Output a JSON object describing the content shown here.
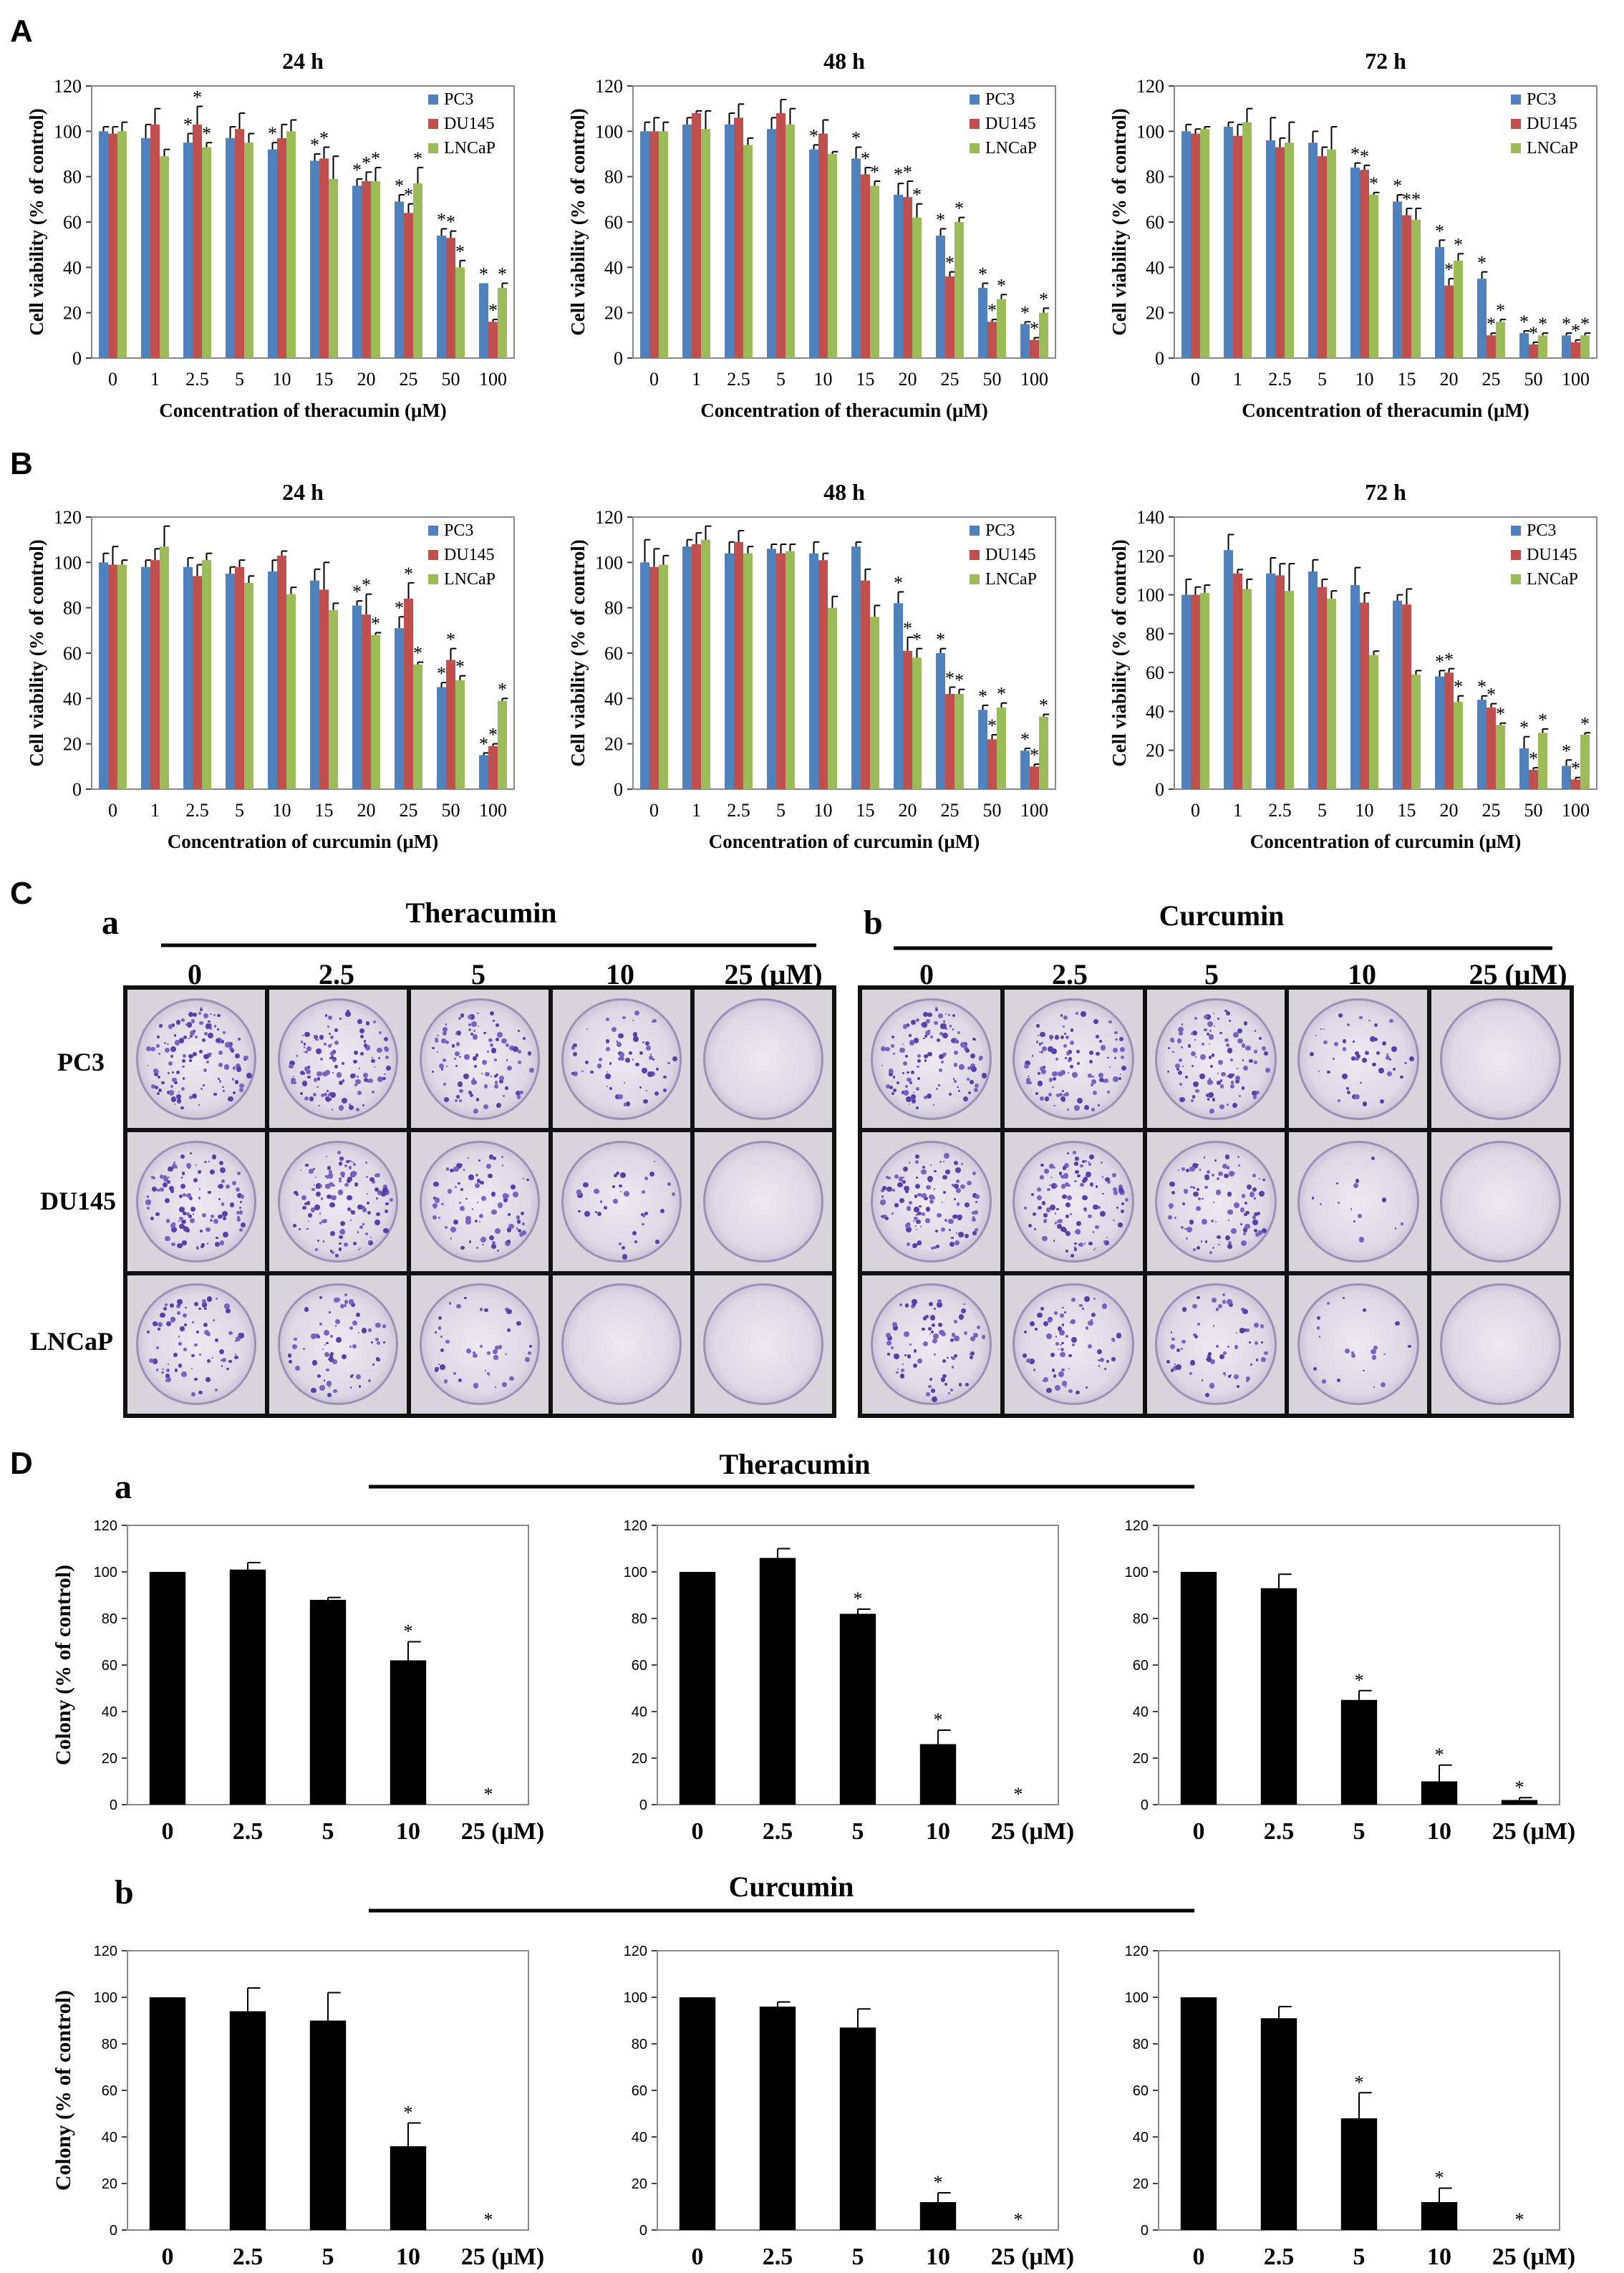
{
  "colors": {
    "pc3": "#4f81bd",
    "du145": "#c0504d",
    "lncap": "#9bbb59",
    "black": "#000000"
  },
  "panel_letters": {
    "A": "A",
    "B": "B",
    "C": "C",
    "D": "D"
  },
  "section_C": {
    "a_label": "a",
    "a_title": "Theracumin",
    "b_label": "b",
    "b_title": "Curcumin",
    "doses": [
      "0",
      "2.5",
      "5",
      "10",
      "25 (μM)"
    ],
    "rows": [
      "PC3",
      "DU145",
      "LNCaP"
    ],
    "colony_density": {
      "theracumin": [
        [
          0.9,
          0.85,
          0.7,
          0.45,
          0.0
        ],
        [
          0.85,
          0.85,
          0.6,
          0.25,
          0.0
        ],
        [
          0.55,
          0.5,
          0.3,
          0.0,
          0.0
        ]
      ],
      "curcumin": [
        [
          0.85,
          0.75,
          0.75,
          0.35,
          0.0
        ],
        [
          0.85,
          0.8,
          0.7,
          0.1,
          0.0
        ],
        [
          0.55,
          0.5,
          0.45,
          0.15,
          0.0
        ]
      ]
    }
  },
  "section_D": {
    "a_label": "a",
    "a_title": "Theracumin",
    "b_label": "b",
    "b_title": "Curcumin"
  },
  "chart_data": [
    {
      "id": "A1",
      "type": "bar",
      "title": "24 h",
      "categories": [
        "0",
        "1",
        "2.5",
        "5",
        "10",
        "15",
        "20",
        "25",
        "50",
        "100"
      ],
      "xlabel": "Concentration  of theracumin  (μM)",
      "ylabel": "Cell viability  (% of control)",
      "ylim": [
        0,
        120
      ],
      "yticks": [
        0,
        20,
        40,
        60,
        80,
        100,
        120
      ],
      "legend": "top-right",
      "series": [
        {
          "name": "PC3",
          "values": [
            100,
            97,
            95,
            97,
            92,
            87,
            76,
            69,
            54,
            33
          ],
          "err": [
            2,
            6,
            4,
            5,
            3,
            3,
            3,
            3,
            3,
            0
          ]
        },
        {
          "name": "DU145",
          "values": [
            99,
            103,
            103,
            101,
            97,
            88,
            78,
            64,
            53,
            16
          ],
          "err": [
            3,
            7,
            8,
            7,
            6,
            5,
            4,
            4,
            3,
            1
          ],
          "stars": [
            "",
            "",
            "*",
            "",
            "",
            "*",
            "*",
            "*",
            "*",
            "*"
          ]
        },
        {
          "name": "LNCaP",
          "values": [
            100,
            89,
            93,
            95,
            100,
            79,
            78,
            77,
            40,
            31
          ],
          "err": [
            4,
            3,
            2,
            4,
            5,
            10,
            6,
            7,
            3,
            2
          ],
          "stars": [
            "",
            "",
            "*",
            "",
            "",
            "",
            "*",
            "*",
            "*",
            "*"
          ]
        }
      ],
      "pc3_stars": [
        "",
        "",
        "*",
        "",
        "*",
        "*",
        "*",
        "*",
        "*",
        "*"
      ]
    },
    {
      "id": "A2",
      "type": "bar",
      "title": "48 h",
      "categories": [
        "0",
        "1",
        "2.5",
        "5",
        "10",
        "15",
        "20",
        "25",
        "50",
        "100"
      ],
      "xlabel": "Concentration  of theracumin  (μM)",
      "ylabel": "Cell viability  (% of control)",
      "ylim": [
        0,
        120
      ],
      "yticks": [
        0,
        20,
        40,
        60,
        80,
        100,
        120
      ],
      "legend": "top-right",
      "series": [
        {
          "name": "PC3",
          "values": [
            100,
            103,
            103,
            101,
            92,
            88,
            72,
            54,
            31,
            15
          ],
          "err": [
            4,
            3,
            5,
            5,
            2,
            5,
            5,
            3,
            2,
            1
          ]
        },
        {
          "name": "DU145",
          "values": [
            100,
            108,
            106,
            108,
            99,
            81,
            71,
            36,
            16,
            8
          ],
          "err": [
            6,
            1,
            6,
            6,
            6,
            3,
            7,
            2,
            1,
            1
          ]
        },
        {
          "name": "LNCaP",
          "values": [
            100,
            101,
            94,
            103,
            90,
            76,
            62,
            60,
            26,
            20
          ],
          "err": [
            4,
            8,
            3,
            7,
            1,
            2,
            6,
            2,
            2,
            2
          ]
        }
      ],
      "pc3_stars": [
        "",
        "",
        "",
        "",
        "*",
        "*",
        "*",
        "*",
        "*",
        "*"
      ],
      "du145_stars": [
        "",
        "",
        "",
        "",
        "",
        "*",
        "*",
        "*",
        "*",
        "*"
      ],
      "lncap_stars": [
        "",
        "",
        "",
        "",
        "",
        "*",
        "*",
        "*",
        "*",
        "*"
      ]
    },
    {
      "id": "A3",
      "type": "bar",
      "title": "72 h",
      "categories": [
        "0",
        "1",
        "2.5",
        "5",
        "10",
        "15",
        "20",
        "25",
        "50",
        "100"
      ],
      "xlabel": "Concentration  of theracumin  (μM)",
      "ylabel": "Cell viability  (% of control)",
      "ylim": [
        0,
        120
      ],
      "yticks": [
        0,
        20,
        40,
        60,
        80,
        100,
        120
      ],
      "legend": "top-right",
      "series": [
        {
          "name": "PC3",
          "values": [
            100,
            102,
            96,
            95,
            84,
            69,
            49,
            35,
            11,
            10
          ],
          "err": [
            3,
            2,
            10,
            5,
            2,
            3,
            3,
            3,
            1,
            1
          ]
        },
        {
          "name": "DU145",
          "values": [
            99,
            98,
            93,
            89,
            83,
            63,
            32,
            10,
            6,
            7
          ],
          "err": [
            2,
            5,
            4,
            4,
            2,
            3,
            3,
            1,
            1,
            1
          ]
        },
        {
          "name": "LNCaP",
          "values": [
            101,
            104,
            95,
            92,
            72,
            61,
            43,
            16,
            10,
            10
          ],
          "err": [
            1,
            6,
            9,
            10,
            1,
            5,
            3,
            1,
            1,
            1
          ]
        }
      ],
      "stars_all": true
    },
    {
      "id": "B1",
      "type": "bar",
      "title": "24 h",
      "categories": [
        "0",
        "1",
        "2.5",
        "5",
        "10",
        "15",
        "20",
        "25",
        "50",
        "100"
      ],
      "xlabel": "Concentration  of curcumin  (μM)",
      "ylabel": "Cell viability  (% of control)",
      "ylim": [
        0,
        120
      ],
      "yticks": [
        0,
        20,
        40,
        60,
        80,
        100,
        120
      ],
      "legend": "top-right",
      "series": [
        {
          "name": "PC3",
          "values": [
            100,
            98,
            98,
            95,
            96,
            92,
            81,
            71,
            45,
            15
          ],
          "err": [
            4,
            3,
            4,
            3,
            5,
            5,
            2,
            5,
            2,
            1
          ]
        },
        {
          "name": "DU145",
          "values": [
            99,
            101,
            94,
            98,
            103,
            88,
            77,
            84,
            57,
            19
          ],
          "err": [
            8,
            5,
            5,
            3,
            2,
            12,
            9,
            7,
            5,
            1
          ]
        },
        {
          "name": "LNCaP",
          "values": [
            99,
            107,
            101,
            91,
            86,
            79,
            68,
            55,
            48,
            39
          ],
          "err": [
            2,
            9,
            3,
            3,
            3,
            3,
            1,
            1,
            2,
            1
          ]
        }
      ]
    },
    {
      "id": "B2",
      "type": "bar",
      "title": "48 h",
      "categories": [
        "0",
        "1",
        "2.5",
        "5",
        "10",
        "15",
        "20",
        "25",
        "50",
        "100"
      ],
      "xlabel": "Concentration  of curcumin  (μM)",
      "ylabel": "Cell viability  (% of control)",
      "ylim": [
        0,
        120
      ],
      "yticks": [
        0,
        20,
        40,
        60,
        80,
        100,
        120
      ],
      "legend": "top-right",
      "series": [
        {
          "name": "PC3",
          "values": [
            100,
            107,
            104,
            106,
            104,
            107,
            82,
            60,
            35,
            17
          ],
          "err": [
            10,
            3,
            5,
            2,
            5,
            2,
            5,
            2,
            2,
            1
          ]
        },
        {
          "name": "DU145",
          "values": [
            98,
            108,
            109,
            104,
            101,
            92,
            61,
            42,
            22,
            10
          ],
          "err": [
            8,
            5,
            5,
            4,
            3,
            5,
            6,
            3,
            2,
            1
          ]
        },
        {
          "name": "LNCaP",
          "values": [
            99,
            110,
            104,
            105,
            80,
            76,
            58,
            42,
            36,
            32
          ],
          "err": [
            4,
            6,
            3,
            3,
            5,
            5,
            4,
            2,
            2,
            1
          ]
        }
      ]
    },
    {
      "id": "B3",
      "type": "bar",
      "title": "72 h",
      "categories": [
        "0",
        "1",
        "2.5",
        "5",
        "10",
        "15",
        "20",
        "25",
        "50",
        "100"
      ],
      "xlabel": "Concentration  of curcumin  (μM)",
      "ylabel": "Cell viability  (% of control)",
      "ylim": [
        0,
        140
      ],
      "yticks": [
        0,
        20,
        40,
        60,
        80,
        100,
        120,
        140
      ],
      "legend": "top-right",
      "series": [
        {
          "name": "PC3",
          "values": [
            100,
            123,
            111,
            112,
            105,
            97,
            58,
            46,
            21,
            12
          ],
          "err": [
            8,
            8,
            8,
            6,
            9,
            3,
            3,
            2,
            6,
            3
          ]
        },
        {
          "name": "DU145",
          "values": [
            100,
            111,
            110,
            104,
            96,
            95,
            60,
            42,
            10,
            5
          ],
          "err": [
            4,
            2,
            6,
            4,
            5,
            8,
            2,
            2,
            1,
            1
          ]
        },
        {
          "name": "LNCaP",
          "values": [
            101,
            103,
            102,
            98,
            69,
            59,
            45,
            33,
            29,
            28
          ],
          "err": [
            4,
            5,
            14,
            4,
            2,
            2,
            3,
            1,
            2,
            1
          ]
        }
      ]
    },
    {
      "id": "D1",
      "type": "bar",
      "categories": [
        "0",
        "2.5",
        "5",
        "10",
        "25 (μM)"
      ],
      "ylabel": "Colony  (% of control)",
      "ylim": [
        0,
        120
      ],
      "yticks": [
        0,
        20,
        40,
        60,
        80,
        100,
        120
      ],
      "series": [
        {
          "values": [
            100,
            101,
            88,
            62,
            0
          ],
          "err": [
            0,
            3,
            1,
            8,
            0
          ],
          "stars": [
            "",
            "",
            "",
            "*",
            "*"
          ]
        }
      ]
    },
    {
      "id": "D2",
      "type": "bar",
      "categories": [
        "0",
        "2.5",
        "5",
        "10",
        "25 (μM)"
      ],
      "ylim": [
        0,
        120
      ],
      "yticks": [
        0,
        20,
        40,
        60,
        80,
        100,
        120
      ],
      "series": [
        {
          "values": [
            100,
            106,
            82,
            26,
            0
          ],
          "err": [
            0,
            4,
            2,
            6,
            0
          ],
          "stars": [
            "",
            "",
            "*",
            "*",
            "*"
          ]
        }
      ]
    },
    {
      "id": "D3",
      "type": "bar",
      "categories": [
        "0",
        "2.5",
        "5",
        "10",
        "25 (μM)"
      ],
      "ylim": [
        0,
        120
      ],
      "yticks": [
        0,
        20,
        40,
        60,
        80,
        100,
        120
      ],
      "series": [
        {
          "values": [
            100,
            93,
            45,
            10,
            2
          ],
          "err": [
            0,
            6,
            4,
            7,
            1
          ],
          "stars": [
            "",
            "",
            "*",
            "*",
            "*"
          ]
        }
      ]
    },
    {
      "id": "D4",
      "type": "bar",
      "categories": [
        "0",
        "2.5",
        "5",
        "10",
        "25 (μM)"
      ],
      "ylabel": "Colony  (% of control)",
      "ylim": [
        0,
        120
      ],
      "yticks": [
        0,
        20,
        40,
        60,
        80,
        100,
        120
      ],
      "series": [
        {
          "values": [
            100,
            94,
            90,
            36,
            0
          ],
          "err": [
            0,
            10,
            12,
            10,
            0
          ],
          "stars": [
            "",
            "",
            "",
            "*",
            "*"
          ]
        }
      ]
    },
    {
      "id": "D5",
      "type": "bar",
      "categories": [
        "0",
        "2.5",
        "5",
        "10",
        "25 (μM)"
      ],
      "ylim": [
        0,
        120
      ],
      "yticks": [
        0,
        20,
        40,
        60,
        80,
        100,
        120
      ],
      "series": [
        {
          "values": [
            100,
            96,
            87,
            12,
            0
          ],
          "err": [
            0,
            2,
            8,
            4,
            0
          ],
          "stars": [
            "",
            "",
            "",
            "*",
            "*"
          ]
        }
      ]
    },
    {
      "id": "D6",
      "type": "bar",
      "categories": [
        "0",
        "2.5",
        "5",
        "10",
        "25 (μM)"
      ],
      "ylim": [
        0,
        120
      ],
      "yticks": [
        0,
        20,
        40,
        60,
        80,
        100,
        120
      ],
      "series": [
        {
          "values": [
            100,
            91,
            48,
            12,
            0
          ],
          "err": [
            0,
            5,
            11,
            6,
            0
          ],
          "stars": [
            "",
            "",
            "*",
            "*",
            "*"
          ]
        }
      ]
    }
  ]
}
